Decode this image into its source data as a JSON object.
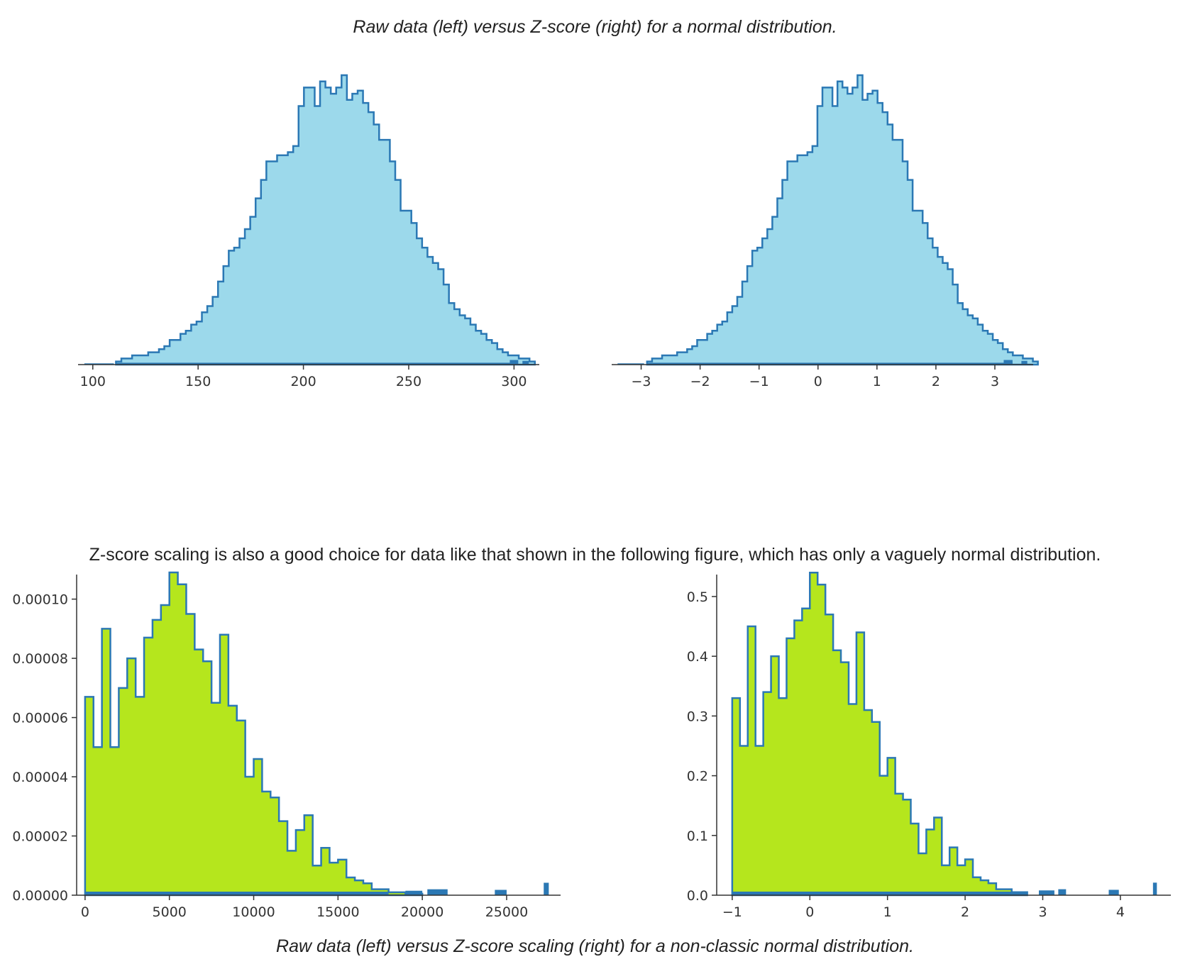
{
  "captions": {
    "top": "Raw data (left) versus Z-score (right) for a normal distribution.",
    "middle": "Z-score scaling is also a good choice for data like that shown in the following figure, which has only a vaguely normal distribution.",
    "bottom": "Raw data (left) versus Z-score scaling (right) for a non-classic normal distribution."
  },
  "chart_data": [
    {
      "type": "histogram",
      "title": "",
      "xlabel": "",
      "ylabel": "",
      "fill_color": "#9cd9eb",
      "edge_color": "#2b78b4",
      "xlim": [
        93,
        312
      ],
      "ylim": [
        0,
        100
      ],
      "x_ticks": [
        100,
        150,
        200,
        250,
        300
      ],
      "y_ticks": [],
      "show_y_axis": false,
      "bin_start": 111,
      "bin_width": 2.55,
      "values": [
        1,
        2,
        2,
        3,
        3,
        3,
        4,
        4,
        5,
        6,
        8,
        8,
        10,
        11,
        13,
        14,
        17,
        19,
        22,
        27,
        32,
        37,
        38,
        41,
        44,
        48,
        54,
        60,
        66,
        66,
        68,
        68,
        69,
        71,
        84,
        90,
        90,
        84,
        92,
        90,
        88,
        90,
        94,
        86,
        88,
        89,
        85,
        82,
        78,
        73,
        73,
        66,
        60,
        50,
        50,
        46,
        41,
        38,
        35,
        33,
        31,
        26,
        20,
        18,
        16,
        15,
        13,
        11,
        10,
        8,
        7,
        5,
        4,
        3,
        3,
        2,
        2,
        1
      ],
      "rug": [
        [
          111,
          300,
          0.6
        ],
        [
          96,
          110,
          0.4
        ],
        [
          298,
          302,
          1.5
        ],
        [
          304,
          307,
          1.2
        ]
      ]
    },
    {
      "type": "histogram",
      "title": "",
      "xlabel": "",
      "ylabel": "",
      "fill_color": "#9cd9eb",
      "edge_color": "#2b78b4",
      "xlim": [
        -3.5,
        3.65
      ],
      "ylim": [
        0,
        100
      ],
      "x_ticks": [
        -3,
        -2,
        -1,
        0,
        1,
        2,
        3
      ],
      "x_tick_labels": [
        "−3",
        "−2",
        "−1",
        "0",
        "1",
        "2",
        "3"
      ],
      "y_ticks": [],
      "show_y_axis": false,
      "bin_start": -2.9,
      "bin_width": 0.085,
      "values": [
        1,
        2,
        2,
        3,
        3,
        3,
        4,
        4,
        5,
        6,
        8,
        8,
        10,
        11,
        13,
        14,
        17,
        19,
        22,
        27,
        32,
        37,
        38,
        41,
        44,
        48,
        54,
        60,
        66,
        66,
        68,
        68,
        69,
        71,
        84,
        90,
        90,
        84,
        92,
        90,
        88,
        90,
        94,
        86,
        88,
        89,
        85,
        82,
        78,
        73,
        73,
        66,
        60,
        50,
        50,
        46,
        41,
        38,
        35,
        33,
        31,
        26,
        20,
        18,
        16,
        15,
        13,
        11,
        10,
        8,
        7,
        5,
        4,
        3,
        3,
        2,
        2,
        1
      ],
      "rug": [
        [
          -2.9,
          3.3,
          0.6
        ],
        [
          -3.4,
          -2.95,
          0.4
        ],
        [
          3.15,
          3.3,
          1.5
        ],
        [
          3.45,
          3.55,
          1.2
        ]
      ]
    },
    {
      "type": "histogram",
      "title": "",
      "xlabel": "",
      "ylabel": "",
      "fill_color": "#b5e61d",
      "edge_color": "#2b78b4",
      "xlim": [
        -500,
        28200
      ],
      "ylim": [
        0,
        0.000115
      ],
      "x_ticks": [
        0,
        5000,
        10000,
        15000,
        20000,
        25000
      ],
      "y_ticks": [
        0,
        2e-05,
        4e-05,
        6e-05,
        8e-05,
        0.0001
      ],
      "y_tick_labels": [
        "0.00000",
        "0.00002",
        "0.00004",
        "0.00006",
        "0.00008",
        "0.00010"
      ],
      "show_y_axis": true,
      "bin_start": 0,
      "bin_width": 500,
      "values": [
        6.7e-05,
        5e-05,
        9e-05,
        5e-05,
        7e-05,
        8e-05,
        6.7e-05,
        8.7e-05,
        9.3e-05,
        9.8e-05,
        0.000109,
        0.000105,
        9.5e-05,
        8.3e-05,
        7.9e-05,
        6.5e-05,
        8.8e-05,
        6.4e-05,
        5.9e-05,
        4e-05,
        4.6e-05,
        3.5e-05,
        3.3e-05,
        2.5e-05,
        1.5e-05,
        2.2e-05,
        2.7e-05,
        1e-05,
        1.6e-05,
        1.1e-05,
        1.2e-05,
        6e-06,
        5e-06,
        4e-06,
        2e-06,
        2e-06,
        1e-06,
        1e-06,
        5e-07,
        5e-07
      ],
      "rug": [
        [
          0,
          18000,
          1.2e-06
        ],
        [
          19000,
          20000,
          1.5e-06
        ],
        [
          20300,
          21500,
          2e-06
        ],
        [
          24300,
          25000,
          1.8e-06
        ],
        [
          27200,
          27500,
          4.2e-06
        ]
      ]
    },
    {
      "type": "histogram",
      "title": "",
      "xlabel": "",
      "ylabel": "",
      "fill_color": "#b5e61d",
      "edge_color": "#2b78b4",
      "xlim": [
        -1.2,
        4.65
      ],
      "ylim": [
        0,
        0.57
      ],
      "x_ticks": [
        -1,
        0,
        1,
        2,
        3,
        4
      ],
      "x_tick_labels": [
        "−1",
        "0",
        "1",
        "2",
        "3",
        "4"
      ],
      "y_ticks": [
        0,
        0.1,
        0.2,
        0.3,
        0.4,
        0.5
      ],
      "y_tick_labels": [
        "0.0",
        "0.1",
        "0.2",
        "0.3",
        "0.4",
        "0.5"
      ],
      "show_y_axis": true,
      "bin_start": -1,
      "bin_width": 0.1,
      "values": [
        0.33,
        0.25,
        0.45,
        0.25,
        0.34,
        0.4,
        0.33,
        0.43,
        0.46,
        0.48,
        0.54,
        0.52,
        0.47,
        0.41,
        0.39,
        0.32,
        0.44,
        0.31,
        0.29,
        0.2,
        0.23,
        0.17,
        0.16,
        0.12,
        0.07,
        0.11,
        0.13,
        0.05,
        0.08,
        0.05,
        0.06,
        0.03,
        0.025,
        0.02,
        0.01,
        0.01,
        0.005,
        0.005
      ],
      "rug": [
        [
          -1,
          2.8,
          0.006
        ],
        [
          2.95,
          3.15,
          0.008
        ],
        [
          3.2,
          3.3,
          0.01
        ],
        [
          3.85,
          3.98,
          0.009
        ],
        [
          4.42,
          4.47,
          0.021
        ]
      ]
    }
  ]
}
